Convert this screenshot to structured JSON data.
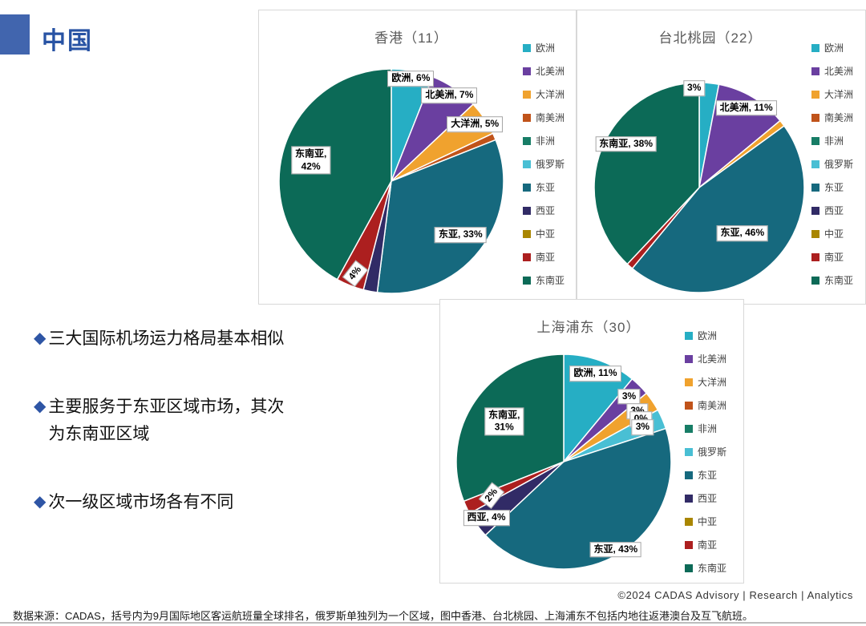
{
  "slide": {
    "title": "中国",
    "bullet_icon": "◆",
    "bullets": [
      "三大国际机场运力格局基本相似",
      "主要服务于东亚区域市场，其次为东南亚区域",
      "次一级区域市场各有不同"
    ],
    "footer_right": "©2024 CADAS Advisory | Research | Analytics",
    "source_note": "数据来源：CADAS，括号内为9月国际地区客运航班量全球排名，俄罗斯单独列为一个区域，图中香港、台北桃园、上海浦东不包括内地往返港澳台及互飞航班。"
  },
  "palette": {
    "欧洲": "#26AEC4",
    "北美洲": "#6A3FA0",
    "大洋洲": "#F0A22E",
    "南美洲": "#C0531A",
    "非洲": "#177D66",
    "俄罗斯": "#49BFD4",
    "东亚": "#16697E",
    "西亚": "#312B66",
    "中亚": "#A98600",
    "南亚": "#AC1F1F",
    "东南亚": "#0C6A57"
  },
  "chart_data": [
    {
      "id": "hk",
      "type": "pie",
      "title": "香港（11）",
      "unit": "%",
      "legend_position": "right",
      "categories": [
        "欧洲",
        "北美洲",
        "大洋洲",
        "南美洲",
        "非洲",
        "俄罗斯",
        "东亚",
        "西亚",
        "中亚",
        "南亚",
        "东南亚"
      ],
      "values": [
        6,
        7,
        5,
        1,
        0,
        0,
        33,
        2,
        0,
        4,
        42
      ],
      "labels": [
        {
          "slice": "欧洲",
          "text": "欧洲, 6%"
        },
        {
          "slice": "北美洲",
          "text": "北美洲, 7%"
        },
        {
          "slice": "大洋洲",
          "text": "大洋洲, 5%"
        },
        {
          "slice": "东亚",
          "text": "东亚, 33%"
        },
        {
          "slice": "南亚",
          "text": "4%"
        },
        {
          "slice": "东南亚",
          "text": "东南亚,\n42%"
        }
      ]
    },
    {
      "id": "tp",
      "type": "pie",
      "title": "台北桃园（22）",
      "unit": "%",
      "legend_position": "right",
      "categories": [
        "欧洲",
        "北美洲",
        "大洋洲",
        "南美洲",
        "非洲",
        "俄罗斯",
        "东亚",
        "西亚",
        "中亚",
        "南亚",
        "东南亚"
      ],
      "values": [
        3,
        11,
        1,
        0,
        0,
        0,
        46,
        0,
        0,
        1,
        38
      ],
      "labels": [
        {
          "slice": "欧洲",
          "text": "3%"
        },
        {
          "slice": "北美洲",
          "text": "北美洲, 11%"
        },
        {
          "slice": "东亚",
          "text": "东亚, 46%"
        },
        {
          "slice": "东南亚",
          "text": "东南亚, 38%"
        }
      ]
    },
    {
      "id": "sh",
      "type": "pie",
      "title": "上海浦东（30）",
      "unit": "%",
      "legend_position": "right",
      "categories": [
        "欧洲",
        "北美洲",
        "大洋洲",
        "南美洲",
        "非洲",
        "俄罗斯",
        "东亚",
        "西亚",
        "中亚",
        "南亚",
        "东南亚"
      ],
      "values": [
        11,
        3,
        3,
        0,
        0,
        3,
        43,
        4,
        0,
        2,
        31
      ],
      "labels": [
        {
          "slice": "欧洲",
          "text": "欧洲, 11%"
        },
        {
          "slice": "北美洲",
          "text": "3%"
        },
        {
          "slice": "大洋洲",
          "text": "3%"
        },
        {
          "slice": "南美洲",
          "text": "0%"
        },
        {
          "slice": "俄罗斯",
          "text": "3%"
        },
        {
          "slice": "东亚",
          "text": "东亚, 43%"
        },
        {
          "slice": "西亚",
          "text": "西亚, 4%"
        },
        {
          "slice": "南亚",
          "text": "2%"
        },
        {
          "slice": "东南亚",
          "text": "东南亚,\n31%"
        }
      ]
    }
  ]
}
